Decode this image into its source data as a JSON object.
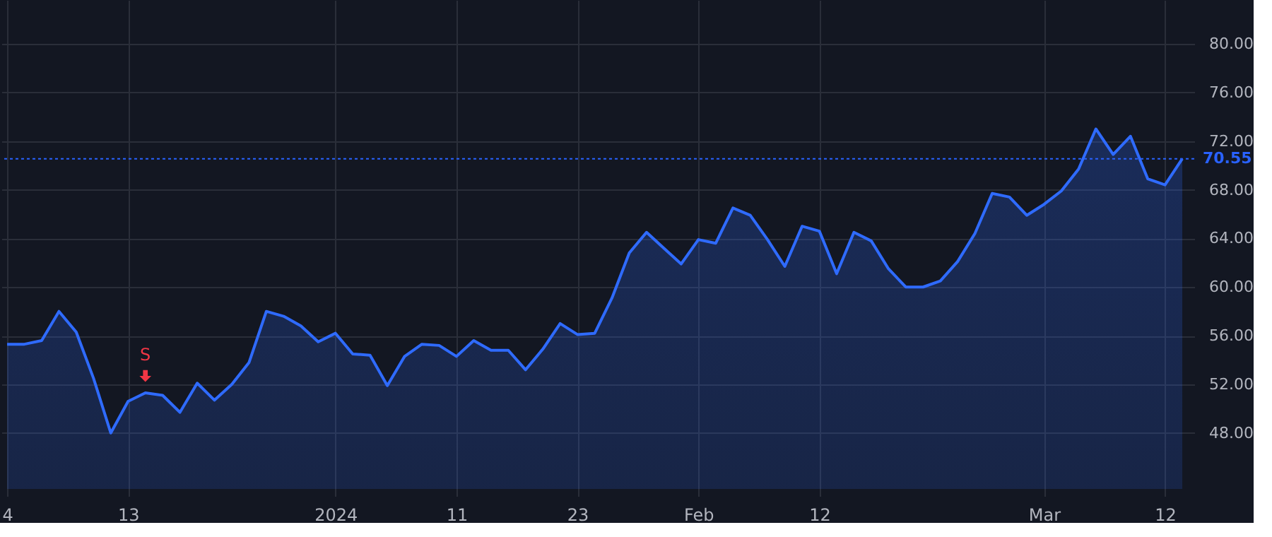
{
  "chart_data": {
    "type": "area",
    "categories": [
      "4",
      null,
      null,
      null,
      null,
      null,
      null,
      "13",
      null,
      null,
      null,
      null,
      null,
      null,
      null,
      null,
      null,
      null,
      null,
      "2024",
      null,
      null,
      null,
      null,
      null,
      null,
      "11",
      null,
      null,
      null,
      null,
      null,
      null,
      "23",
      null,
      null,
      null,
      null,
      null,
      null,
      "Feb",
      null,
      null,
      null,
      null,
      null,
      null,
      "12",
      null,
      null,
      null,
      null,
      null,
      null,
      null,
      null,
      null,
      null,
      null,
      null,
      "Mar",
      null,
      null,
      null,
      null,
      null,
      null,
      "12",
      null
    ],
    "series": [
      {
        "color": "#2f6bff",
        "values": [
          55.3,
          55.3,
          55.6,
          58.0,
          56.3,
          52.5,
          48.0,
          50.6,
          51.3,
          51.1,
          49.7,
          52.1,
          50.7,
          52.0,
          53.8,
          58.0,
          57.6,
          56.8,
          55.5,
          56.2,
          54.5,
          54.4,
          51.9,
          54.3,
          55.3,
          55.2,
          54.3,
          55.6,
          54.8,
          54.8,
          53.2,
          54.9,
          57.0,
          56.1,
          56.2,
          59.1,
          62.8,
          64.5,
          63.2,
          61.9,
          63.9,
          63.6,
          66.5,
          65.9,
          63.9,
          61.7,
          65.0,
          64.6,
          61.1,
          64.5,
          63.8,
          61.5,
          60.0,
          60.0,
          60.5,
          62.1,
          64.4,
          67.7,
          67.4,
          65.9,
          66.8,
          67.9,
          69.7,
          73.0,
          70.9,
          72.4,
          68.9,
          68.4,
          70.55
        ]
      }
    ],
    "ylim": [
      43.4,
      83.6
    ],
    "yticks": [
      {
        "value": 48,
        "label": "48.00"
      },
      {
        "value": 52,
        "label": "52.00"
      },
      {
        "value": 56,
        "label": "56.00"
      },
      {
        "value": 60,
        "label": "60.00"
      },
      {
        "value": 64,
        "label": "64.00"
      },
      {
        "value": 68,
        "label": "68.00"
      },
      {
        "value": 72,
        "label": "72.00"
      },
      {
        "value": 76,
        "label": "76.00"
      },
      {
        "value": 80,
        "label": "80.00"
      }
    ],
    "grid": true,
    "ref_lines": [
      {
        "axis": "y",
        "value": 70.55,
        "label": "70.55",
        "color": "#2962ff",
        "line_style": "dotted"
      }
    ],
    "annotations": [
      {
        "text": "S",
        "y": 51.3
      }
    ]
  }
}
